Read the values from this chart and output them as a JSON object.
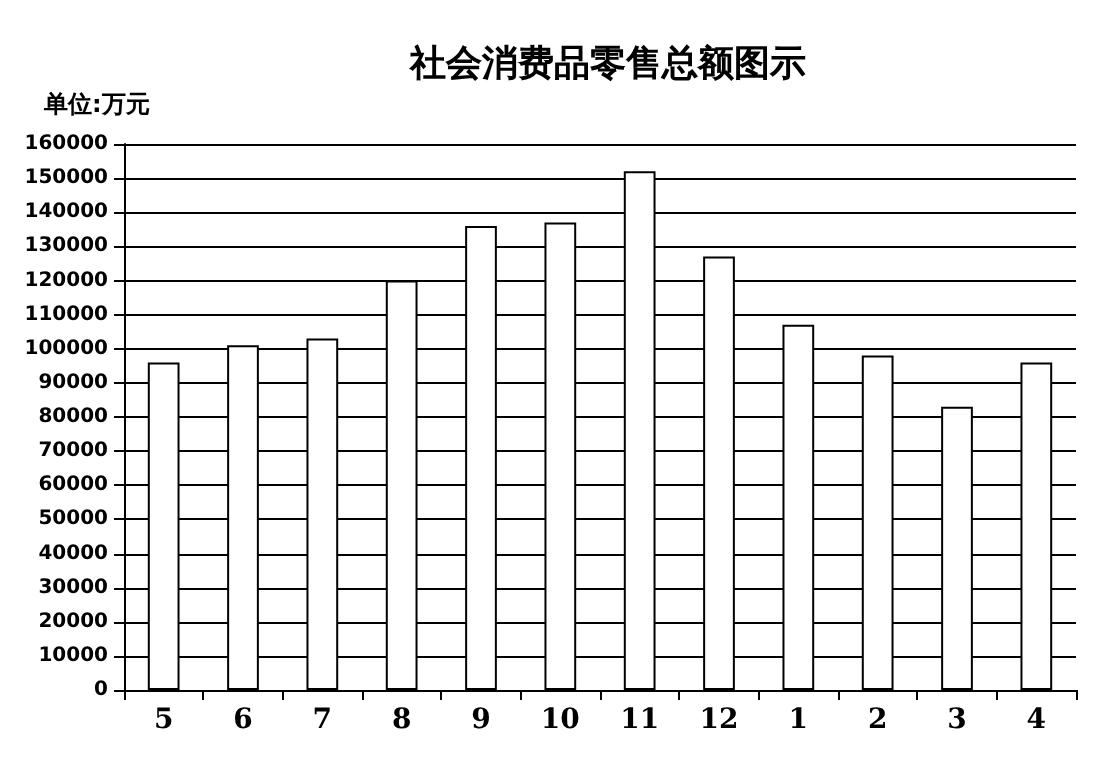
{
  "chart_data": {
    "type": "bar",
    "title": "社会消费品零售总额图示",
    "ylabel": "单位:万元",
    "categories": [
      "5",
      "6",
      "7",
      "8",
      "9",
      "10",
      "11",
      "12",
      "1",
      "2",
      "3",
      "4"
    ],
    "series": [
      {
        "color": "#ffffff",
        "values": [
          96000,
          101000,
          103000,
          120000,
          136000,
          137000,
          152000,
          127000,
          107000,
          98000,
          83000,
          96000
        ]
      }
    ],
    "ylim": [
      0,
      160000
    ],
    "yticks": [
      0,
      10000,
      20000,
      30000,
      40000,
      50000,
      60000,
      70000,
      80000,
      90000,
      100000,
      110000,
      120000,
      130000,
      140000,
      150000,
      160000
    ],
    "grid": "y"
  }
}
